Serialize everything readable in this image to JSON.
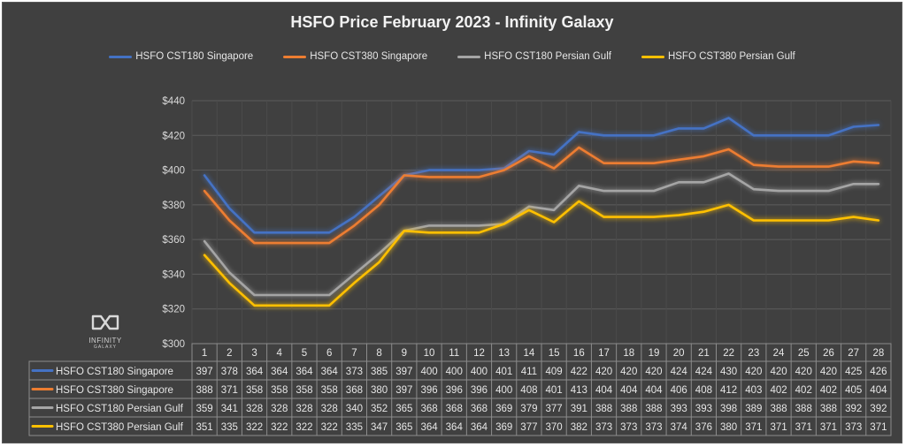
{
  "chart_data": {
    "type": "line",
    "title": "HSFO Price February 2023 - Infinity Galaxy",
    "categories": [
      "1",
      "2",
      "3",
      "4",
      "5",
      "6",
      "7",
      "8",
      "9",
      "10",
      "11",
      "12",
      "13",
      "14",
      "15",
      "16",
      "17",
      "18",
      "19",
      "20",
      "21",
      "22",
      "23",
      "24",
      "25",
      "26",
      "27",
      "28"
    ],
    "y_ticks": [
      "$300",
      "$320",
      "$340",
      "$360",
      "$380",
      "$400",
      "$420",
      "$440"
    ],
    "ylim": [
      300,
      440
    ],
    "y_format": "currency",
    "grid": true,
    "legend_position": "top",
    "data_table": true,
    "series": [
      {
        "name": "HSFO CST180 Singapore",
        "color": "#4472c4",
        "values": [
          397,
          378,
          364,
          364,
          364,
          364,
          373,
          385,
          397,
          400,
          400,
          400,
          401,
          411,
          409,
          422,
          420,
          420,
          420,
          424,
          424,
          430,
          420,
          420,
          420,
          420,
          425,
          426
        ]
      },
      {
        "name": "HSFO CST380 Singapore",
        "color": "#ed7d31",
        "values": [
          388,
          371,
          358,
          358,
          358,
          358,
          368,
          380,
          397,
          396,
          396,
          396,
          400,
          408,
          401,
          413,
          404,
          404,
          404,
          406,
          408,
          412,
          403,
          402,
          402,
          402,
          405,
          404
        ]
      },
      {
        "name": "HSFO CST180 Persian Gulf",
        "color": "#a5a5a5",
        "values": [
          359,
          341,
          328,
          328,
          328,
          328,
          340,
          352,
          365,
          368,
          368,
          368,
          369,
          379,
          377,
          391,
          388,
          388,
          388,
          393,
          393,
          398,
          389,
          388,
          388,
          388,
          392,
          392
        ]
      },
      {
        "name": "HSFO CST380 Persian Gulf",
        "color": "#ffc000",
        "values": [
          351,
          335,
          322,
          322,
          322,
          322,
          335,
          347,
          365,
          364,
          364,
          364,
          369,
          377,
          370,
          382,
          373,
          373,
          373,
          374,
          376,
          380,
          371,
          371,
          371,
          371,
          373,
          371
        ]
      }
    ]
  },
  "logo": {
    "word": "INFINITY",
    "sub": "GALAXY"
  }
}
